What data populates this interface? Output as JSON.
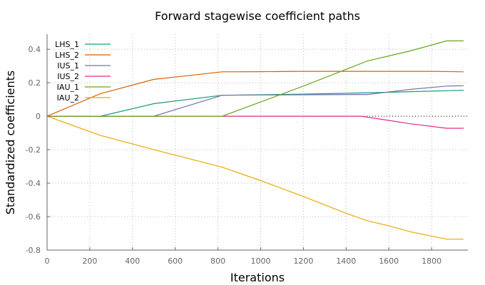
{
  "chart_data": {
    "type": "line",
    "title": "Forward stagewise coefficient paths",
    "xlabel": "Iterations",
    "ylabel": "Standardized coefficients",
    "xlim": [
      0,
      1970
    ],
    "ylim": [
      -0.8,
      0.49
    ],
    "xticks": [
      0,
      200,
      400,
      600,
      800,
      1000,
      1200,
      1400,
      1600,
      1800
    ],
    "yticks": [
      -0.8,
      -0.6,
      -0.4,
      -0.2,
      0,
      0.2,
      0.4
    ],
    "ytick_labels": [
      "-0.8",
      "-0.6",
      "-0.4",
      "-0.2",
      "0",
      "0.2",
      "0.4"
    ],
    "grid": true,
    "zero_line": true,
    "legend_position": "top-left",
    "series": [
      {
        "name": "LHS_1",
        "color": "#1b9e77",
        "x": [
          0,
          250,
          500,
          820,
          1000,
          1200,
          1400,
          1600,
          1800,
          1950
        ],
        "y": [
          0,
          0,
          0.075,
          0.125,
          0.128,
          0.132,
          0.137,
          0.143,
          0.15,
          0.155
        ]
      },
      {
        "name": "LHS_2",
        "color": "#d95f02",
        "x": [
          0,
          250,
          500,
          820,
          1000,
          1200,
          1400,
          1600,
          1800,
          1950
        ],
        "y": [
          0,
          0.135,
          0.22,
          0.265,
          0.266,
          0.268,
          0.268,
          0.268,
          0.268,
          0.265
        ]
      },
      {
        "name": "IUS_1",
        "color": "#7570b3",
        "x": [
          0,
          500,
          820,
          1000,
          1200,
          1500,
          1700,
          1870,
          1950
        ],
        "y": [
          0,
          0,
          0.125,
          0.127,
          0.128,
          0.13,
          0.16,
          0.18,
          0.182
        ]
      },
      {
        "name": "IUS_2",
        "color": "#e7298a",
        "x": [
          0,
          1000,
          1470,
          1600,
          1700,
          1870,
          1950
        ],
        "y": [
          0,
          0,
          0,
          -0.025,
          -0.045,
          -0.072,
          -0.072
        ]
      },
      {
        "name": "IAU_1",
        "color": "#66a61e",
        "x": [
          0,
          820,
          1000,
          1200,
          1400,
          1500,
          1600,
          1700,
          1870,
          1950
        ],
        "y": [
          0,
          0,
          0.085,
          0.18,
          0.28,
          0.33,
          0.36,
          0.39,
          0.45,
          0.45
        ]
      },
      {
        "name": "IAU_2",
        "color": "#e6ab02",
        "x": [
          0,
          250,
          500,
          820,
          1000,
          1200,
          1400,
          1500,
          1600,
          1700,
          1870,
          1950
        ],
        "y": [
          0,
          -0.115,
          -0.2,
          -0.305,
          -0.385,
          -0.48,
          -0.58,
          -0.625,
          -0.655,
          -0.69,
          -0.735,
          -0.735
        ]
      }
    ]
  }
}
